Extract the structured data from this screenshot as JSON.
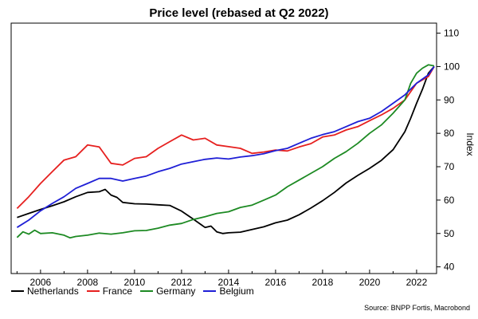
{
  "chart_data": {
    "type": "line",
    "title": "Price level (rebased at Q2 2022)",
    "ylabel": "Index",
    "ylim": [
      38,
      113
    ],
    "xlim": [
      2004.75,
      2022.85
    ],
    "y_ticks": [
      40,
      50,
      60,
      70,
      80,
      90,
      100,
      110
    ],
    "x_ticks": [
      2006,
      2008,
      2010,
      2012,
      2014,
      2016,
      2018,
      2020,
      2022
    ],
    "y_axis_side": "right",
    "grid": false,
    "legend_position": "bottom-left",
    "source": "Source: BNPP Fortis, Macrobond",
    "series": [
      {
        "name": "Netherlands",
        "color": "#000000",
        "points": [
          [
            2005.0,
            54.8
          ],
          [
            2005.5,
            56.0
          ],
          [
            2006.0,
            57.2
          ],
          [
            2006.5,
            58.3
          ],
          [
            2007.0,
            59.5
          ],
          [
            2007.5,
            61.0
          ],
          [
            2008.0,
            62.3
          ],
          [
            2008.5,
            62.5
          ],
          [
            2008.75,
            63.2
          ],
          [
            2009.0,
            61.5
          ],
          [
            2009.25,
            60.8
          ],
          [
            2009.5,
            59.3
          ],
          [
            2010.0,
            58.9
          ],
          [
            2010.5,
            58.8
          ],
          [
            2011.0,
            58.6
          ],
          [
            2011.5,
            58.4
          ],
          [
            2012.0,
            56.7
          ],
          [
            2012.5,
            54.3
          ],
          [
            2013.0,
            51.8
          ],
          [
            2013.25,
            52.2
          ],
          [
            2013.5,
            50.5
          ],
          [
            2013.75,
            50.0
          ],
          [
            2014.0,
            50.2
          ],
          [
            2014.5,
            50.4
          ],
          [
            2015.0,
            51.2
          ],
          [
            2015.5,
            52.0
          ],
          [
            2016.0,
            53.2
          ],
          [
            2016.5,
            54.0
          ],
          [
            2017.0,
            55.6
          ],
          [
            2017.5,
            57.6
          ],
          [
            2018.0,
            59.8
          ],
          [
            2018.5,
            62.3
          ],
          [
            2019.0,
            65.1
          ],
          [
            2019.5,
            67.4
          ],
          [
            2020.0,
            69.5
          ],
          [
            2020.5,
            71.9
          ],
          [
            2021.0,
            75.1
          ],
          [
            2021.5,
            80.5
          ],
          [
            2021.75,
            84.5
          ],
          [
            2022.0,
            89.0
          ],
          [
            2022.25,
            93.2
          ],
          [
            2022.5,
            98.0
          ],
          [
            2022.75,
            100.0
          ]
        ]
      },
      {
        "name": "France",
        "color": "#e6201f",
        "points": [
          [
            2005.0,
            57.5
          ],
          [
            2005.5,
            61.0
          ],
          [
            2006.0,
            65.0
          ],
          [
            2006.5,
            68.5
          ],
          [
            2007.0,
            72.0
          ],
          [
            2007.5,
            73.0
          ],
          [
            2008.0,
            76.5
          ],
          [
            2008.5,
            75.9
          ],
          [
            2009.0,
            71.0
          ],
          [
            2009.5,
            70.5
          ],
          [
            2010.0,
            72.5
          ],
          [
            2010.5,
            73.0
          ],
          [
            2011.0,
            75.5
          ],
          [
            2011.5,
            77.5
          ],
          [
            2012.0,
            79.5
          ],
          [
            2012.5,
            78.0
          ],
          [
            2013.0,
            78.5
          ],
          [
            2013.5,
            76.5
          ],
          [
            2014.0,
            76.0
          ],
          [
            2014.5,
            75.5
          ],
          [
            2015.0,
            74.0
          ],
          [
            2015.5,
            74.4
          ],
          [
            2016.0,
            75.0
          ],
          [
            2016.5,
            74.7
          ],
          [
            2017.0,
            75.9
          ],
          [
            2017.5,
            76.9
          ],
          [
            2018.0,
            78.9
          ],
          [
            2018.5,
            79.5
          ],
          [
            2019.0,
            81.0
          ],
          [
            2019.5,
            82.0
          ],
          [
            2020.0,
            83.8
          ],
          [
            2020.5,
            85.5
          ],
          [
            2021.0,
            87.5
          ],
          [
            2021.5,
            90.0
          ],
          [
            2022.0,
            95.0
          ],
          [
            2022.5,
            97.0
          ],
          [
            2022.75,
            100.0
          ]
        ]
      },
      {
        "name": "Germany",
        "color": "#1d8a23",
        "points": [
          [
            2005.0,
            48.8
          ],
          [
            2005.25,
            50.5
          ],
          [
            2005.5,
            49.8
          ],
          [
            2005.75,
            51.0
          ],
          [
            2006.0,
            50.0
          ],
          [
            2006.5,
            50.2
          ],
          [
            2007.0,
            49.5
          ],
          [
            2007.25,
            48.7
          ],
          [
            2007.5,
            49.1
          ],
          [
            2008.0,
            49.5
          ],
          [
            2008.5,
            50.1
          ],
          [
            2009.0,
            49.8
          ],
          [
            2009.5,
            50.2
          ],
          [
            2010.0,
            50.8
          ],
          [
            2010.5,
            50.9
          ],
          [
            2011.0,
            51.6
          ],
          [
            2011.5,
            52.5
          ],
          [
            2012.0,
            53.0
          ],
          [
            2012.5,
            54.2
          ],
          [
            2013.0,
            55.0
          ],
          [
            2013.5,
            56.0
          ],
          [
            2014.0,
            56.5
          ],
          [
            2014.5,
            57.8
          ],
          [
            2015.0,
            58.5
          ],
          [
            2015.5,
            60.0
          ],
          [
            2016.0,
            61.5
          ],
          [
            2016.5,
            64.0
          ],
          [
            2017.0,
            66.0
          ],
          [
            2017.5,
            68.0
          ],
          [
            2018.0,
            70.0
          ],
          [
            2018.5,
            72.5
          ],
          [
            2019.0,
            74.5
          ],
          [
            2019.5,
            77.0
          ],
          [
            2020.0,
            80.0
          ],
          [
            2020.5,
            82.5
          ],
          [
            2021.0,
            86.0
          ],
          [
            2021.5,
            90.0
          ],
          [
            2021.75,
            95.0
          ],
          [
            2022.0,
            98.0
          ],
          [
            2022.25,
            99.5
          ],
          [
            2022.5,
            100.5
          ],
          [
            2022.75,
            100.2
          ]
        ]
      },
      {
        "name": "Belgium",
        "color": "#1f1fd6",
        "points": [
          [
            2005.0,
            51.8
          ],
          [
            2005.5,
            54.0
          ],
          [
            2006.0,
            56.8
          ],
          [
            2006.5,
            59.0
          ],
          [
            2007.0,
            61.0
          ],
          [
            2007.5,
            63.5
          ],
          [
            2008.0,
            65.0
          ],
          [
            2008.5,
            66.5
          ],
          [
            2009.0,
            66.5
          ],
          [
            2009.5,
            65.7
          ],
          [
            2010.0,
            66.5
          ],
          [
            2010.5,
            67.2
          ],
          [
            2011.0,
            68.5
          ],
          [
            2011.5,
            69.5
          ],
          [
            2012.0,
            70.8
          ],
          [
            2012.5,
            71.5
          ],
          [
            2013.0,
            72.2
          ],
          [
            2013.5,
            72.6
          ],
          [
            2014.0,
            72.3
          ],
          [
            2014.5,
            72.9
          ],
          [
            2015.0,
            73.3
          ],
          [
            2015.5,
            73.9
          ],
          [
            2016.0,
            74.8
          ],
          [
            2016.5,
            75.5
          ],
          [
            2017.0,
            77.0
          ],
          [
            2017.5,
            78.5
          ],
          [
            2018.0,
            79.6
          ],
          [
            2018.5,
            80.5
          ],
          [
            2019.0,
            82.0
          ],
          [
            2019.5,
            83.5
          ],
          [
            2020.0,
            84.5
          ],
          [
            2020.5,
            86.5
          ],
          [
            2021.0,
            89.0
          ],
          [
            2021.5,
            91.5
          ],
          [
            2022.0,
            95.0
          ],
          [
            2022.5,
            97.5
          ],
          [
            2022.75,
            100.0
          ]
        ]
      }
    ]
  }
}
